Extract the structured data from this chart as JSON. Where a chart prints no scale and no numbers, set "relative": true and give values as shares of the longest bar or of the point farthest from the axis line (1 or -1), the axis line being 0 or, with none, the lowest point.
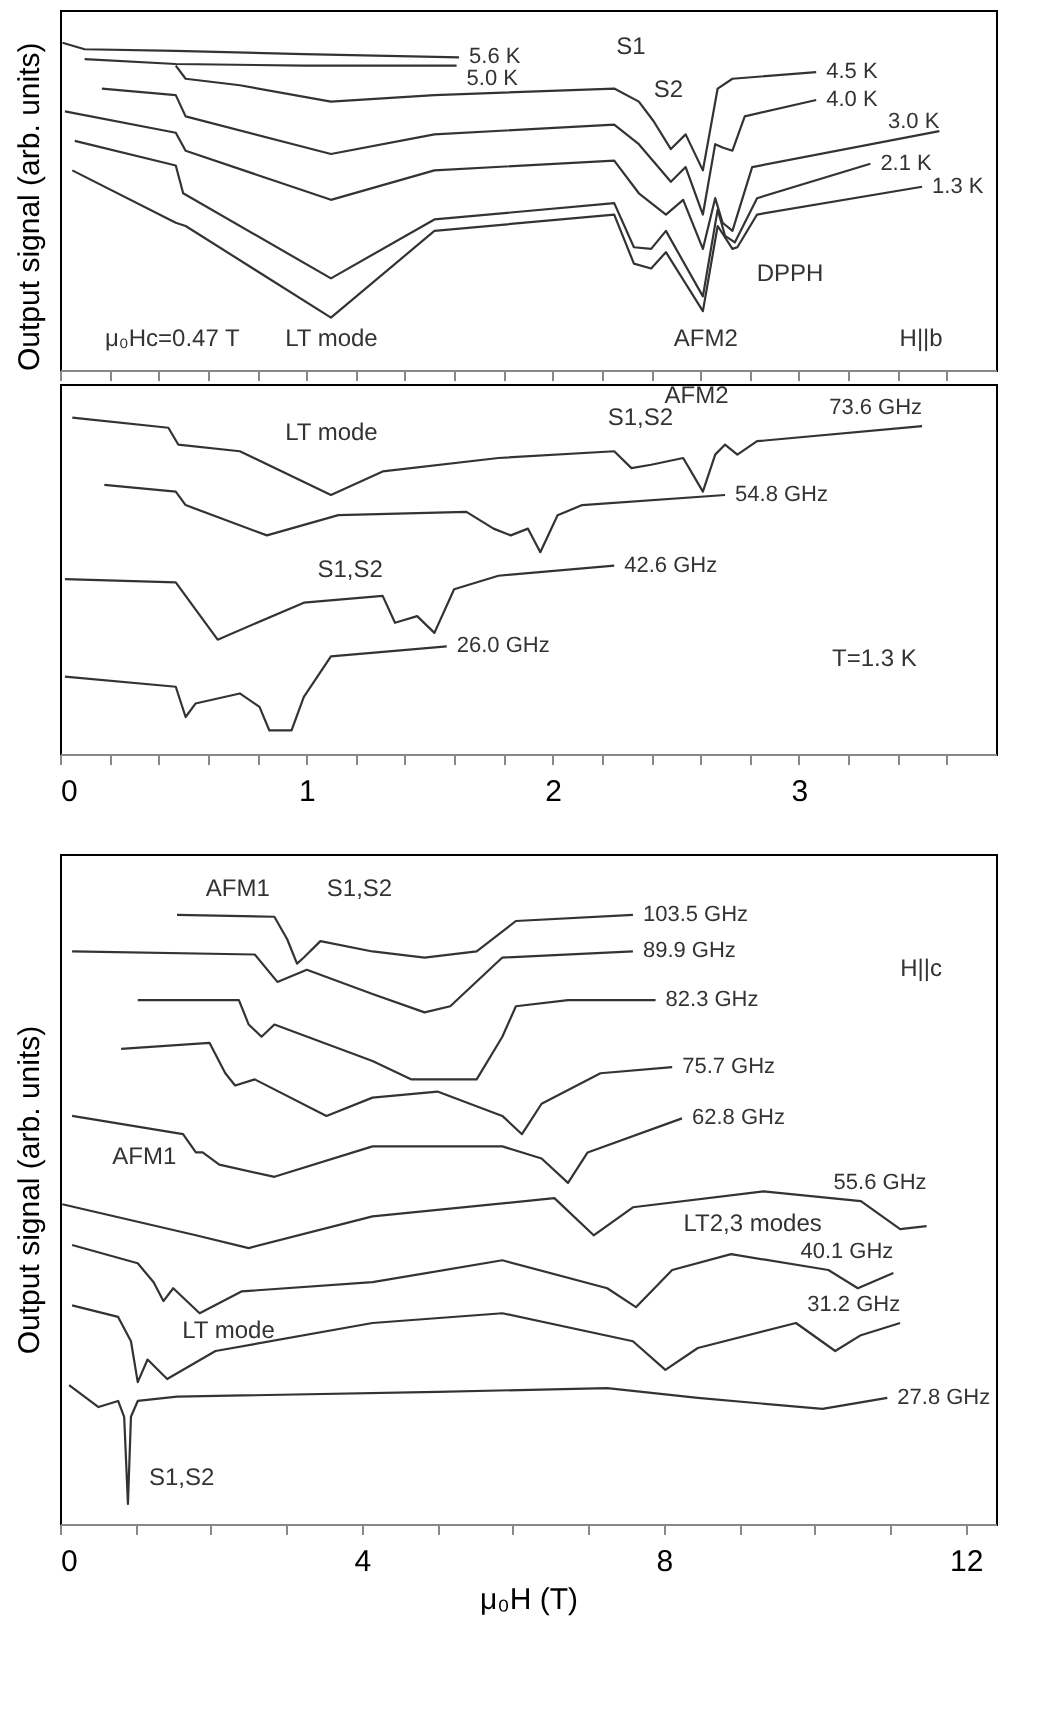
{
  "chart_data": [
    {
      "type": "line",
      "relative": true,
      "ylabel": "Output signal (arb. units)",
      "tick_labels": false,
      "line_style": "solid",
      "xlim": [
        0,
        3.8
      ],
      "xticks": [
        0,
        {
          "value": 0.2,
          "label": null
        },
        {
          "value": 0.4,
          "label": null
        },
        {
          "value": 0.6,
          "label": null
        },
        {
          "value": 0.8,
          "label": null
        },
        1,
        {
          "value": 1.2,
          "label": null
        },
        {
          "value": 1.4,
          "label": null
        },
        {
          "value": 1.6,
          "label": null
        },
        {
          "value": 1.8,
          "label": null
        },
        2,
        {
          "value": 2.2,
          "label": null
        },
        {
          "value": 2.4,
          "label": null
        },
        {
          "value": 2.6,
          "label": null
        },
        {
          "value": 2.8,
          "label": null
        },
        3,
        {
          "value": 3.2,
          "label": null
        },
        {
          "value": 3.4,
          "label": null
        },
        {
          "value": 3.6,
          "label": null
        }
      ],
      "series": [
        {
          "name": "5.6 K",
          "color": "#333333",
          "x": [
            0.01,
            0.1,
            0.47,
            0.99,
            1.62
          ],
          "values": [
            1.0,
            0.98,
            0.975,
            0.965,
            0.955
          ]
        },
        {
          "name": "5.0 K",
          "color": "#333333",
          "x": [
            0.1,
            0.47,
            0.99,
            1.61
          ],
          "values": [
            0.95,
            0.935,
            0.93,
            0.93
          ]
        },
        {
          "name": "4.5 K",
          "color": "#333333",
          "x": [
            0.47,
            0.51,
            0.73,
            1.1,
            1.52,
            2.25,
            2.35,
            2.41,
            2.48,
            2.54,
            2.61,
            2.67,
            2.73,
            3.07
          ],
          "values": [
            0.93,
            0.89,
            0.87,
            0.82,
            0.84,
            0.86,
            0.82,
            0.76,
            0.675,
            0.72,
            0.61,
            0.86,
            0.89,
            0.91
          ]
        },
        {
          "name": "4.0 K",
          "color": "#333333",
          "x": [
            0.17,
            0.47,
            0.51,
            1.1,
            1.52,
            2.25,
            2.35,
            2.48,
            2.54,
            2.61,
            2.66,
            2.69,
            2.73,
            2.78,
            3.07
          ],
          "values": [
            0.86,
            0.84,
            0.775,
            0.66,
            0.72,
            0.75,
            0.69,
            0.575,
            0.62,
            0.475,
            0.69,
            0.68,
            0.67,
            0.775,
            0.825
          ]
        },
        {
          "name": "3.0 K",
          "color": "#333333",
          "x": [
            0.02,
            0.47,
            0.51,
            1.1,
            1.52,
            2.25,
            2.35,
            2.46,
            2.53,
            2.61,
            2.66,
            2.69,
            2.73,
            2.81,
            3.57
          ],
          "values": [
            0.79,
            0.725,
            0.67,
            0.52,
            0.61,
            0.64,
            0.54,
            0.475,
            0.52,
            0.37,
            0.525,
            0.45,
            0.425,
            0.62,
            0.73
          ]
        },
        {
          "name": "2.1 K",
          "color": "#333333",
          "x": [
            0.06,
            0.47,
            0.5,
            1.1,
            1.52,
            2.25,
            2.33,
            2.4,
            2.46,
            2.61,
            2.67,
            2.7,
            2.74,
            2.83,
            3.29
          ],
          "values": [
            0.7,
            0.625,
            0.54,
            0.28,
            0.46,
            0.51,
            0.375,
            0.37,
            0.425,
            0.225,
            0.49,
            0.41,
            0.39,
            0.525,
            0.63
          ]
        },
        {
          "name": "1.3 K",
          "color": "#333333",
          "x": [
            0.05,
            0.47,
            0.51,
            1.1,
            1.52,
            2.25,
            2.33,
            2.4,
            2.46,
            2.61,
            2.67,
            2.73,
            2.75,
            2.83,
            3.5
          ],
          "values": [
            0.61,
            0.45,
            0.44,
            0.16,
            0.425,
            0.475,
            0.325,
            0.31,
            0.36,
            0.18,
            0.44,
            0.37,
            0.375,
            0.475,
            0.56
          ]
        }
      ],
      "annotations": [
        "S1",
        "S2",
        "DPPH",
        "μ₀Hc=0.47 T",
        "LT mode",
        "AFM2",
        "H||b"
      ]
    },
    {
      "type": "line",
      "relative": true,
      "tick_labels": "x",
      "line_style": "solid",
      "xlim": [
        0,
        3.8
      ],
      "xticks": [
        0,
        {
          "value": 0.2,
          "label": null
        },
        {
          "value": 0.4,
          "label": null
        },
        {
          "value": 0.6,
          "label": null
        },
        {
          "value": 0.8,
          "label": null
        },
        1,
        {
          "value": 1.2,
          "label": null
        },
        {
          "value": 1.4,
          "label": null
        },
        {
          "value": 1.6,
          "label": null
        },
        {
          "value": 1.8,
          "label": null
        },
        2,
        {
          "value": 2.2,
          "label": null
        },
        {
          "value": 2.4,
          "label": null
        },
        {
          "value": 2.6,
          "label": null
        },
        {
          "value": 2.8,
          "label": null
        },
        3,
        {
          "value": 3.2,
          "label": null
        },
        {
          "value": 3.4,
          "label": null
        },
        {
          "value": 3.6,
          "label": null
        }
      ],
      "series": [
        {
          "name": "73.6 GHz",
          "color": "#333333",
          "x": [
            0.05,
            0.44,
            0.48,
            0.73,
            1.1,
            1.31,
            1.78,
            2.25,
            2.32,
            2.4,
            2.53,
            2.61,
            2.66,
            2.7,
            2.75,
            2.83,
            3.5
          ],
          "values": [
            1.0,
            0.97,
            0.92,
            0.9,
            0.77,
            0.84,
            0.88,
            0.9,
            0.85,
            0.86,
            0.88,
            0.78,
            0.89,
            0.92,
            0.89,
            0.93,
            0.975
          ]
        },
        {
          "name": "54.8 GHz",
          "color": "#333333",
          "x": [
            0.18,
            0.47,
            0.51,
            0.84,
            1.13,
            1.65,
            1.76,
            1.83,
            1.9,
            1.95,
            2.02,
            2.12,
            2.7
          ],
          "values": [
            0.8,
            0.78,
            0.74,
            0.65,
            0.71,
            0.72,
            0.67,
            0.65,
            0.67,
            0.6,
            0.71,
            0.74,
            0.77
          ]
        },
        {
          "name": "42.6 GHz",
          "color": "#333333",
          "x": [
            0.02,
            0.47,
            0.51,
            0.64,
            0.99,
            1.31,
            1.36,
            1.45,
            1.52,
            1.6,
            1.78,
            2.25
          ],
          "values": [
            0.52,
            0.51,
            0.47,
            0.34,
            0.45,
            0.47,
            0.39,
            0.41,
            0.36,
            0.49,
            0.53,
            0.56
          ]
        },
        {
          "name": "26.0 GHz",
          "color": "#333333",
          "x": [
            0.02,
            0.47,
            0.51,
            0.55,
            0.73,
            0.81,
            0.85,
            0.94,
            0.99,
            1.1,
            1.57
          ],
          "values": [
            0.23,
            0.2,
            0.11,
            0.15,
            0.18,
            0.14,
            0.07,
            0.07,
            0.17,
            0.29,
            0.32
          ]
        }
      ],
      "annotations": [
        "LT mode",
        "S1,S2",
        "AFM2",
        "S1,S2",
        "T=1.3 K"
      ]
    },
    {
      "type": "line",
      "relative": true,
      "ylabel": "Output signal (arb. units)",
      "xlabel": "μ₀H (T)",
      "tick_labels": "x",
      "line_style": "solid",
      "xlim": [
        0,
        12.4
      ],
      "xticks": [
        0,
        {
          "value": 1,
          "label": null
        },
        {
          "value": 2,
          "label": null
        },
        {
          "value": 3,
          "label": null
        },
        4,
        {
          "value": 5,
          "label": null
        },
        {
          "value": 6,
          "label": null
        },
        {
          "value": 7,
          "label": null
        },
        8,
        {
          "value": 9,
          "label": null
        },
        {
          "value": 10,
          "label": null
        },
        {
          "value": 11,
          "label": null
        },
        12
      ],
      "series": [
        {
          "name": "103.5 GHz",
          "color": "#333333",
          "x": [
            1.55,
            2.84,
            3.01,
            3.14,
            3.23,
            3.45,
            4.14,
            4.83,
            5.52,
            6.04,
            7.59
          ],
          "values": [
            1.0,
            0.997,
            0.96,
            0.92,
            0.93,
            0.957,
            0.94,
            0.93,
            0.94,
            0.99,
            1.0
          ]
        },
        {
          "name": "89.9 GHz",
          "color": "#333333",
          "x": [
            0.16,
            2.58,
            2.88,
            3.27,
            4.14,
            4.83,
            5.17,
            5.86,
            7.59
          ],
          "values": [
            0.94,
            0.935,
            0.89,
            0.91,
            0.87,
            0.84,
            0.85,
            0.93,
            0.94
          ]
        },
        {
          "name": "82.3 GHz",
          "color": "#333333",
          "x": [
            1.03,
            2.37,
            2.5,
            2.67,
            2.84,
            4.14,
            4.65,
            5.52,
            5.86,
            6.04,
            6.73,
            7.89
          ],
          "values": [
            0.86,
            0.86,
            0.82,
            0.8,
            0.82,
            0.76,
            0.73,
            0.73,
            0.8,
            0.85,
            0.86,
            0.86
          ]
        },
        {
          "name": "75.7 GHz",
          "color": "#333333",
          "x": [
            0.81,
            1.98,
            2.19,
            2.32,
            2.58,
            3.53,
            4.14,
            5.0,
            5.86,
            6.12,
            6.38,
            7.16,
            8.11
          ],
          "values": [
            0.78,
            0.79,
            0.74,
            0.72,
            0.73,
            0.67,
            0.7,
            0.71,
            0.67,
            0.64,
            0.69,
            0.74,
            0.75
          ]
        },
        {
          "name": "62.8 GHz",
          "color": "#333333",
          "x": [
            0.16,
            1.63,
            1.8,
            1.89,
            2.11,
            2.84,
            4.14,
            5.86,
            6.38,
            6.73,
            6.99,
            8.24
          ],
          "values": [
            0.67,
            0.64,
            0.61,
            0.61,
            0.59,
            0.57,
            0.62,
            0.62,
            0.6,
            0.56,
            0.61,
            0.666
          ]
        },
        {
          "name": "55.6 GHz",
          "color": "#333333",
          "x": [
            0.03,
            1.8,
            2.5,
            4.14,
            6.55,
            7.07,
            7.59,
            9.32,
            10.61,
            11.13,
            11.48
          ],
          "values": [
            0.525,
            0.474,
            0.453,
            0.505,
            0.535,
            0.474,
            0.52,
            0.546,
            0.53,
            0.484,
            0.489
          ]
        },
        {
          "name": "40.1 GHz",
          "color": "#333333",
          "x": [
            0.16,
            1.03,
            1.24,
            1.37,
            1.5,
            1.85,
            2.41,
            4.14,
            5.86,
            7.25,
            7.63,
            8.11,
            8.89,
            10.18,
            10.57,
            11.04
          ],
          "values": [
            0.458,
            0.428,
            0.397,
            0.366,
            0.387,
            0.346,
            0.382,
            0.397,
            0.433,
            0.387,
            0.356,
            0.417,
            0.443,
            0.417,
            0.387,
            0.412
          ]
        },
        {
          "name": "31.2 GHz",
          "color": "#333333",
          "x": [
            0.16,
            0.77,
            0.94,
            1.03,
            1.16,
            1.42,
            2.06,
            4.14,
            5.86,
            7.59,
            8.02,
            8.45,
            9.75,
            10.27,
            10.61,
            11.13
          ],
          "values": [
            0.359,
            0.34,
            0.3,
            0.233,
            0.27,
            0.238,
            0.284,
            0.33,
            0.346,
            0.3,
            0.253,
            0.289,
            0.33,
            0.284,
            0.31,
            0.33
          ]
        },
        {
          "name": "27.8 GHz",
          "color": "#333333",
          "x": [
            0.12,
            0.51,
            0.77,
            0.85,
            0.9,
            0.94,
            1.03,
            1.55,
            5.0,
            7.25,
            8.45,
            10.1,
            10.96
          ],
          "values": [
            0.228,
            0.192,
            0.202,
            0.176,
            0.033,
            0.176,
            0.202,
            0.209,
            0.217,
            0.223,
            0.207,
            0.189,
            0.207
          ]
        }
      ],
      "annotations": [
        "AFM1",
        "S1,S2",
        "AFM1",
        "LT2,3 modes",
        "LT mode",
        "S1,S2",
        "H||c"
      ]
    }
  ]
}
